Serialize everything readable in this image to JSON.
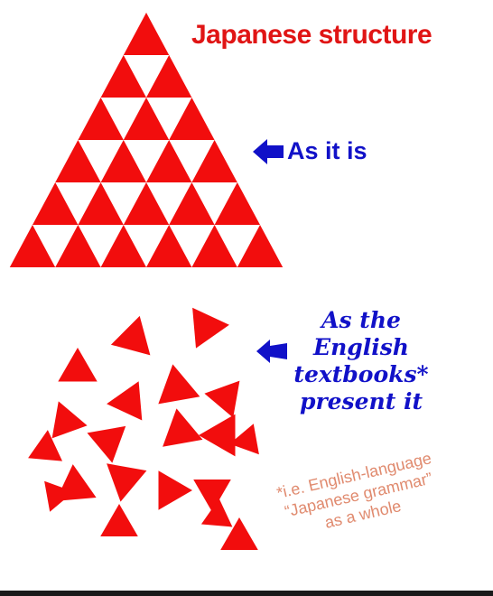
{
  "title": "Japanese structure",
  "label_top": "As it is",
  "label_bottom_lines": [
    "As the",
    "English",
    "textbooks*",
    "present it"
  ],
  "footnote_lines": [
    "*i.e. English-language",
    "“Japanese grammar”",
    "as a whole"
  ],
  "colors": {
    "triangle": "#f20d0d",
    "title": "#e01515",
    "label": "#1111c8",
    "footnote": "#e08a6e",
    "bottom_bar": "#1a1a1a"
  },
  "icons": [
    "left-arrow-icon",
    "left-arrow-icon"
  ]
}
